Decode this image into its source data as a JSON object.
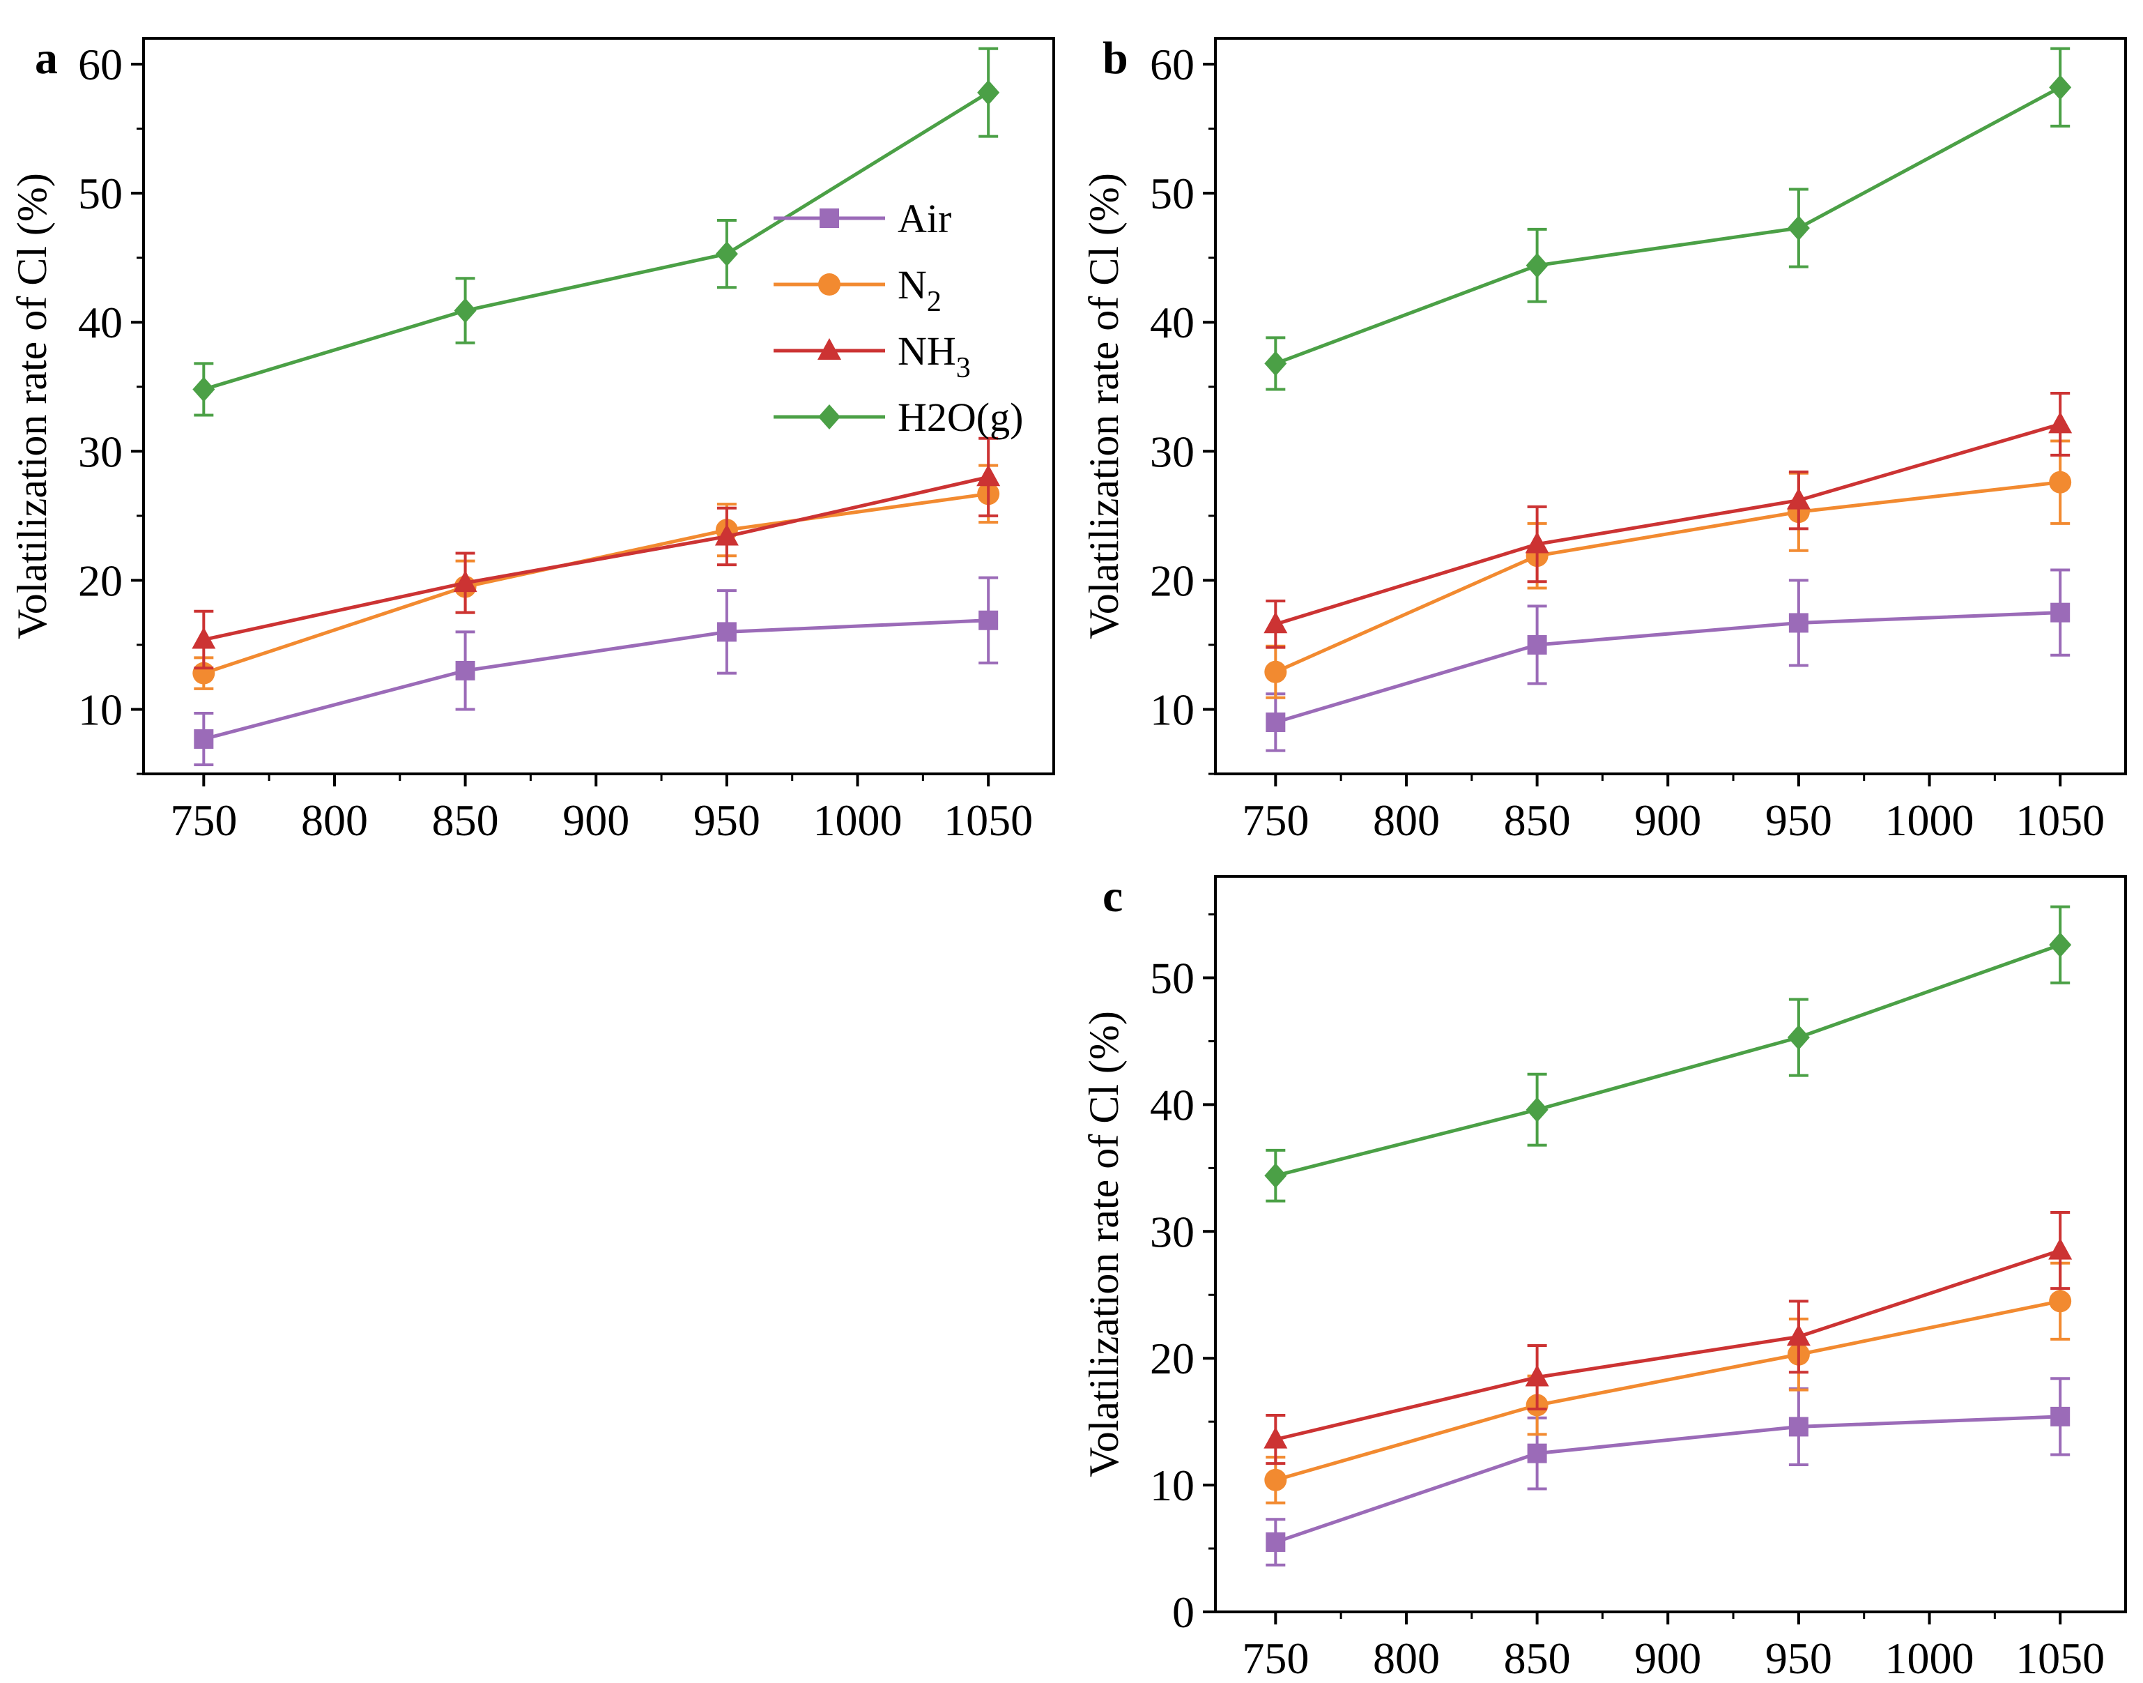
{
  "chart_data": [
    {
      "panel": "a",
      "type": "line",
      "ylabel": "Volatilization rate of Cl (%)",
      "xlabel": "",
      "x": [
        750,
        850,
        950,
        1050
      ],
      "xticks": [
        750,
        800,
        850,
        900,
        950,
        1000,
        1050
      ],
      "xlim": [
        727,
        1075
      ],
      "yticks": [
        10,
        20,
        30,
        40,
        50,
        60
      ],
      "ylim": [
        5,
        62
      ],
      "legend": {
        "placement": "top-center",
        "entries": [
          "Air",
          "N2",
          "NH3",
          "H2O(g)"
        ]
      },
      "series": [
        {
          "name": "Air",
          "color": "#9b6bb8",
          "marker": "square",
          "values": [
            7.7,
            13.0,
            16.0,
            16.9
          ],
          "errors": [
            2.0,
            3.0,
            3.2,
            3.3
          ]
        },
        {
          "name": "N2",
          "color": "#f28a30",
          "marker": "circle",
          "values": [
            12.8,
            19.5,
            23.9,
            26.7
          ],
          "errors": [
            1.2,
            2.0,
            2.0,
            2.2
          ]
        },
        {
          "name": "NH3",
          "color": "#cc3333",
          "marker": "triangle",
          "values": [
            15.4,
            19.8,
            23.4,
            28.0
          ],
          "errors": [
            2.2,
            2.3,
            2.2,
            3.0
          ]
        },
        {
          "name": "H2O(g)",
          "color": "#4ba046",
          "marker": "diamond",
          "values": [
            34.8,
            40.9,
            45.3,
            57.8
          ],
          "errors": [
            2.0,
            2.5,
            2.6,
            3.4
          ]
        }
      ]
    },
    {
      "panel": "b",
      "type": "line",
      "ylabel": "Volatilization rate of Cl (%)",
      "xlabel": "",
      "x": [
        750,
        850,
        950,
        1050
      ],
      "xticks": [
        750,
        800,
        850,
        900,
        950,
        1000,
        1050
      ],
      "xlim": [
        727,
        1075
      ],
      "yticks": [
        10,
        20,
        30,
        40,
        50,
        60
      ],
      "ylim": [
        5,
        62
      ],
      "series": [
        {
          "name": "Air",
          "color": "#9b6bb8",
          "marker": "square",
          "values": [
            9.0,
            15.0,
            16.7,
            17.5
          ],
          "errors": [
            2.2,
            3.0,
            3.3,
            3.3
          ]
        },
        {
          "name": "N2",
          "color": "#f28a30",
          "marker": "circle",
          "values": [
            12.9,
            21.9,
            25.3,
            27.6
          ],
          "errors": [
            2.0,
            2.5,
            3.0,
            3.2
          ]
        },
        {
          "name": "NH3",
          "color": "#cc3333",
          "marker": "triangle",
          "values": [
            16.6,
            22.8,
            26.2,
            32.1
          ],
          "errors": [
            1.8,
            2.9,
            2.2,
            2.4
          ]
        },
        {
          "name": "H2O(g)",
          "color": "#4ba046",
          "marker": "diamond",
          "values": [
            36.8,
            44.4,
            47.3,
            58.2
          ],
          "errors": [
            2.0,
            2.8,
            3.0,
            3.0
          ]
        }
      ]
    },
    {
      "panel": "c",
      "type": "line",
      "ylabel": "Volatilization rate of Cl (%)",
      "xlabel": "",
      "x": [
        750,
        850,
        950,
        1050
      ],
      "xticks": [
        750,
        800,
        850,
        900,
        950,
        1000,
        1050
      ],
      "xlim": [
        727,
        1075
      ],
      "yticks": [
        0,
        10,
        20,
        30,
        40,
        50
      ],
      "ylim": [
        0,
        58
      ],
      "series": [
        {
          "name": "Air",
          "color": "#9b6bb8",
          "marker": "square",
          "values": [
            5.5,
            12.5,
            14.6,
            15.4
          ],
          "errors": [
            1.8,
            2.8,
            3.0,
            3.0
          ]
        },
        {
          "name": "N2",
          "color": "#f28a30",
          "marker": "circle",
          "values": [
            10.4,
            16.3,
            20.3,
            24.5
          ],
          "errors": [
            1.8,
            2.3,
            2.8,
            3.0
          ]
        },
        {
          "name": "NH3",
          "color": "#cc3333",
          "marker": "triangle",
          "values": [
            13.6,
            18.5,
            21.7,
            28.5
          ],
          "errors": [
            1.9,
            2.5,
            2.8,
            3.0
          ]
        },
        {
          "name": "H2O(g)",
          "color": "#4ba046",
          "marker": "diamond",
          "values": [
            34.4,
            39.6,
            45.3,
            52.6
          ],
          "errors": [
            2.0,
            2.8,
            3.0,
            3.0
          ]
        }
      ]
    }
  ]
}
